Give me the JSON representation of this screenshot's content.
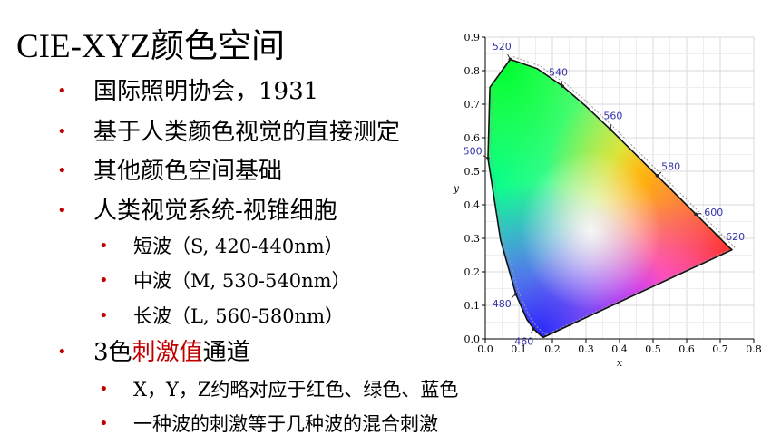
{
  "slide": {
    "title": "CIE-XYZ颜色空间",
    "bullets": [
      {
        "text": "国际照明协会，1931"
      },
      {
        "text": "基于人类颜色视觉的直接测定"
      },
      {
        "text": "其他颜色空间基础"
      },
      {
        "text": "人类视觉系统-视锥细胞"
      },
      {
        "text": "短波（S, 420-440nm）"
      },
      {
        "text": "中波（M, 530-540nm）"
      },
      {
        "text": "长波（L, 560-580nm）"
      },
      {
        "prefix": "3色",
        "highlight": "刺激值",
        "suffix": "通道"
      },
      {
        "text": "X，Y，Z约略对应于红色、绿色、蓝色"
      },
      {
        "text": "一种波的刺激等于几种波的混合刺激"
      }
    ],
    "bullet_glyph": "•",
    "accent_color": "#c00000"
  },
  "chart_data": {
    "type": "scatter",
    "xlabel": "x",
    "ylabel": "y",
    "xlim": [
      0.0,
      0.8
    ],
    "ylim": [
      0.0,
      0.9
    ],
    "x_ticks": [
      "0.0",
      "0.1",
      "0.2",
      "0.3",
      "0.4",
      "0.5",
      "0.6",
      "0.7",
      "0.8"
    ],
    "y_ticks": [
      "0.0",
      "0.1",
      "0.2",
      "0.3",
      "0.4",
      "0.5",
      "0.6",
      "0.7",
      "0.8",
      "0.9"
    ],
    "grid": true,
    "wavelength_labels": [
      {
        "label": "460",
        "x": 0.144,
        "y": 0.03
      },
      {
        "label": "480",
        "x": 0.091,
        "y": 0.133
      },
      {
        "label": "500",
        "x": 0.008,
        "y": 0.538
      },
      {
        "label": "520",
        "x": 0.074,
        "y": 0.834
      },
      {
        "label": "540",
        "x": 0.23,
        "y": 0.754
      },
      {
        "label": "560",
        "x": 0.373,
        "y": 0.624
      },
      {
        "label": "580",
        "x": 0.512,
        "y": 0.487
      },
      {
        "label": "600",
        "x": 0.627,
        "y": 0.372
      },
      {
        "label": "620",
        "x": 0.691,
        "y": 0.308
      }
    ],
    "locus": [
      [
        0.1741,
        0.005
      ],
      [
        0.1738,
        0.0049
      ],
      [
        0.1724,
        0.0048
      ],
      [
        0.1666,
        0.0089
      ],
      [
        0.144,
        0.0297
      ],
      [
        0.1241,
        0.0578
      ],
      [
        0.0913,
        0.1327
      ],
      [
        0.0454,
        0.295
      ],
      [
        0.0082,
        0.5384
      ],
      [
        0.0139,
        0.7502
      ],
      [
        0.0743,
        0.8338
      ],
      [
        0.1547,
        0.8059
      ],
      [
        0.2296,
        0.7543
      ],
      [
        0.3016,
        0.6923
      ],
      [
        0.3731,
        0.6245
      ],
      [
        0.4441,
        0.5547
      ],
      [
        0.5125,
        0.4866
      ],
      [
        0.5752,
        0.4242
      ],
      [
        0.627,
        0.3725
      ],
      [
        0.6658,
        0.334
      ],
      [
        0.6915,
        0.3083
      ],
      [
        0.7079,
        0.292
      ],
      [
        0.7347,
        0.2653
      ]
    ]
  }
}
